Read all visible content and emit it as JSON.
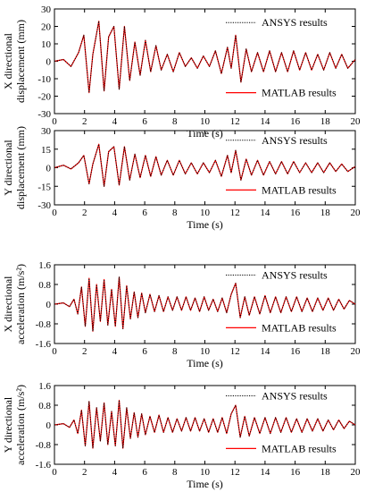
{
  "chart_data": [
    {
      "type": "line",
      "xlabel": "Time (s)",
      "ylabel": [
        "X directional",
        "displacement (mm)"
      ],
      "xlim": [
        0,
        20
      ],
      "ylim": [
        -30,
        30
      ],
      "xticks": [
        0,
        2,
        4,
        6,
        8,
        10,
        12,
        14,
        16,
        18,
        20
      ],
      "yticks": [
        -30,
        -20,
        -10,
        0,
        10,
        20,
        30
      ],
      "ytick_labels": [
        "-30",
        "-20",
        "-10",
        "0",
        "10",
        "20",
        "30"
      ],
      "grid": false,
      "legend": "top-right",
      "series": [
        {
          "name": "ANSYS results",
          "color": "#000000",
          "style": "dotted"
        },
        {
          "name": "MATLAB results",
          "color": "#ff0000",
          "style": "solid"
        }
      ],
      "x": [
        0.0,
        0.6,
        1.1,
        1.6,
        1.95,
        2.3,
        2.55,
        2.95,
        3.3,
        3.6,
        3.95,
        4.3,
        4.65,
        5.0,
        5.35,
        5.7,
        6.05,
        6.4,
        6.75,
        7.1,
        7.5,
        7.9,
        8.3,
        8.7,
        9.1,
        9.5,
        9.9,
        10.3,
        10.7,
        11.1,
        11.5,
        11.75,
        12.05,
        12.4,
        12.75,
        13.1,
        13.5,
        13.9,
        14.3,
        14.7,
        15.1,
        15.5,
        15.9,
        16.3,
        16.7,
        17.1,
        17.5,
        17.9,
        18.3,
        18.7,
        19.1,
        19.5,
        20.0
      ],
      "values": [
        0,
        1,
        -3,
        5,
        15,
        -18,
        4,
        23,
        -17,
        14,
        20,
        -16,
        20,
        -11,
        11,
        -8,
        12,
        -6,
        9,
        -5,
        4,
        -6,
        5,
        -3,
        2,
        -4,
        3,
        -3,
        6,
        -7,
        8,
        -4,
        15,
        -12,
        7,
        -6,
        5,
        -6,
        6,
        -6,
        5,
        -6,
        6,
        -5,
        5,
        -5,
        4,
        -5,
        5,
        -4,
        4,
        -4,
        1
      ]
    },
    {
      "type": "line",
      "xlabel": "Time (s)",
      "ylabel": [
        "Y directional",
        "displacement (mm)"
      ],
      "xlim": [
        0,
        20
      ],
      "ylim": [
        -30,
        30
      ],
      "xticks": [
        0,
        2,
        4,
        6,
        8,
        10,
        12,
        14,
        16,
        18,
        20
      ],
      "yticks": [
        -30,
        -15,
        0,
        15,
        30
      ],
      "ytick_labels": [
        "-30",
        "-15",
        "0",
        "15",
        "30"
      ],
      "grid": false,
      "legend": "top-right",
      "series": [
        {
          "name": "ANSYS results",
          "color": "#000000",
          "style": "dotted"
        },
        {
          "name": "MATLAB results",
          "color": "#ff0000",
          "style": "solid"
        }
      ],
      "x": [
        0.0,
        0.6,
        1.1,
        1.6,
        1.95,
        2.3,
        2.55,
        2.95,
        3.3,
        3.6,
        3.95,
        4.3,
        4.65,
        5.0,
        5.35,
        5.7,
        6.05,
        6.4,
        6.75,
        7.1,
        7.5,
        7.9,
        8.3,
        8.7,
        9.1,
        9.5,
        9.9,
        10.3,
        10.7,
        11.1,
        11.5,
        11.75,
        12.05,
        12.4,
        12.75,
        13.1,
        13.5,
        13.9,
        14.3,
        14.7,
        15.1,
        15.5,
        15.9,
        16.3,
        16.7,
        17.1,
        17.5,
        17.9,
        18.3,
        18.7,
        19.1,
        19.5,
        20.0
      ],
      "values": [
        0,
        2,
        -1,
        4,
        10,
        -13,
        3,
        19,
        -15,
        13,
        17,
        -14,
        17,
        -10,
        11,
        -8,
        10,
        -7,
        9,
        -6,
        6,
        -6,
        6,
        -5,
        4,
        -5,
        4,
        -4,
        6,
        -7,
        10,
        -4,
        14,
        -10,
        7,
        -6,
        6,
        -6,
        5,
        -5,
        5,
        -5,
        5,
        -4,
        4,
        -4,
        4,
        -4,
        4,
        -3,
        3,
        -3,
        1
      ]
    },
    {
      "type": "line",
      "xlabel": "Time (s)",
      "ylabel": [
        "X directional",
        "acceleration (m/s²)"
      ],
      "xlim": [
        0,
        20
      ],
      "ylim": [
        -1.6,
        1.6
      ],
      "xticks": [
        0,
        2,
        4,
        6,
        8,
        10,
        12,
        14,
        16,
        18,
        20
      ],
      "yticks": [
        -1.6,
        -0.8,
        0,
        0.8,
        1.6
      ],
      "ytick_labels": [
        "-1.6",
        "-0.8",
        "0",
        "0.8",
        "1.6"
      ],
      "grid": false,
      "legend": "top-right",
      "series": [
        {
          "name": "ANSYS results",
          "color": "#000000",
          "style": "dotted"
        },
        {
          "name": "MATLAB results",
          "color": "#ff0000",
          "style": "solid"
        }
      ],
      "x": [
        0.0,
        0.6,
        1.0,
        1.3,
        1.55,
        1.8,
        2.05,
        2.3,
        2.55,
        2.8,
        3.05,
        3.3,
        3.55,
        3.8,
        4.05,
        4.3,
        4.55,
        4.8,
        5.05,
        5.3,
        5.55,
        5.8,
        6.05,
        6.35,
        6.65,
        6.95,
        7.25,
        7.55,
        7.85,
        8.15,
        8.45,
        8.75,
        9.05,
        9.35,
        9.65,
        9.95,
        10.25,
        10.55,
        10.85,
        11.15,
        11.45,
        11.75,
        12.05,
        12.35,
        12.65,
        12.95,
        13.3,
        13.65,
        14.0,
        14.35,
        14.7,
        15.05,
        15.4,
        15.75,
        16.1,
        16.45,
        16.8,
        17.15,
        17.5,
        17.85,
        18.2,
        18.55,
        18.9,
        19.25,
        19.6,
        20.0
      ],
      "values": [
        0,
        0.05,
        -0.1,
        0.2,
        -0.4,
        0.7,
        -0.9,
        1.05,
        -1.1,
        0.8,
        -0.7,
        1.0,
        -0.85,
        0.6,
        -0.9,
        1.1,
        -1.0,
        0.75,
        -0.6,
        0.5,
        -0.55,
        0.45,
        -0.35,
        0.4,
        -0.3,
        0.35,
        -0.3,
        0.3,
        -0.25,
        0.3,
        -0.25,
        0.3,
        -0.25,
        0.25,
        -0.3,
        0.3,
        -0.25,
        0.2,
        -0.3,
        0.25,
        -0.35,
        0.4,
        0.85,
        -0.55,
        0.3,
        -0.45,
        0.3,
        -0.4,
        0.35,
        -0.35,
        0.3,
        -0.35,
        0.3,
        -0.3,
        0.3,
        -0.3,
        0.25,
        -0.3,
        0.25,
        -0.25,
        0.25,
        -0.25,
        0.2,
        -0.2,
        0.15,
        0.0
      ]
    },
    {
      "type": "line",
      "xlabel": "Time (s)",
      "ylabel": [
        "Y directional",
        "acceleration (m/s²)"
      ],
      "xlim": [
        0,
        20
      ],
      "ylim": [
        -1.6,
        1.6
      ],
      "xticks": [
        0,
        2,
        4,
        6,
        8,
        10,
        12,
        14,
        16,
        18,
        20
      ],
      "yticks": [
        -1.6,
        -0.8,
        0,
        0.8,
        1.6
      ],
      "ytick_labels": [
        "-1.6",
        "-0.8",
        "0",
        "0.8",
        "1.6"
      ],
      "grid": false,
      "legend": "top-right",
      "series": [
        {
          "name": "ANSYS results",
          "color": "#000000",
          "style": "dotted"
        },
        {
          "name": "MATLAB results",
          "color": "#ff0000",
          "style": "solid"
        }
      ],
      "x": [
        0.0,
        0.6,
        1.0,
        1.3,
        1.55,
        1.8,
        2.05,
        2.3,
        2.55,
        2.8,
        3.05,
        3.3,
        3.55,
        3.8,
        4.05,
        4.3,
        4.55,
        4.8,
        5.05,
        5.3,
        5.55,
        5.8,
        6.05,
        6.35,
        6.65,
        6.95,
        7.25,
        7.55,
        7.85,
        8.15,
        8.45,
        8.75,
        9.05,
        9.35,
        9.65,
        9.95,
        10.25,
        10.55,
        10.85,
        11.15,
        11.45,
        11.75,
        12.05,
        12.35,
        12.65,
        12.95,
        13.3,
        13.65,
        14.0,
        14.35,
        14.7,
        15.05,
        15.4,
        15.75,
        16.1,
        16.45,
        16.8,
        17.15,
        17.5,
        17.85,
        18.2,
        18.55,
        18.9,
        19.25,
        19.6,
        20.0
      ],
      "values": [
        0,
        0.05,
        -0.1,
        0.2,
        -0.35,
        0.6,
        -0.85,
        0.95,
        -0.95,
        0.7,
        -0.65,
        0.9,
        -0.8,
        0.55,
        -0.85,
        1.0,
        -0.95,
        0.7,
        -0.55,
        0.5,
        -0.5,
        0.45,
        -0.4,
        0.35,
        -0.3,
        0.4,
        -0.3,
        0.3,
        -0.3,
        0.25,
        -0.25,
        0.3,
        -0.25,
        0.3,
        -0.25,
        0.25,
        -0.3,
        0.25,
        -0.3,
        0.3,
        -0.35,
        0.45,
        0.8,
        -0.5,
        0.35,
        -0.45,
        0.3,
        -0.35,
        0.3,
        -0.35,
        0.3,
        -0.3,
        0.3,
        -0.3,
        0.25,
        -0.3,
        0.25,
        -0.25,
        0.25,
        -0.25,
        0.2,
        -0.2,
        0.2,
        -0.15,
        0.15,
        0.0
      ]
    }
  ]
}
